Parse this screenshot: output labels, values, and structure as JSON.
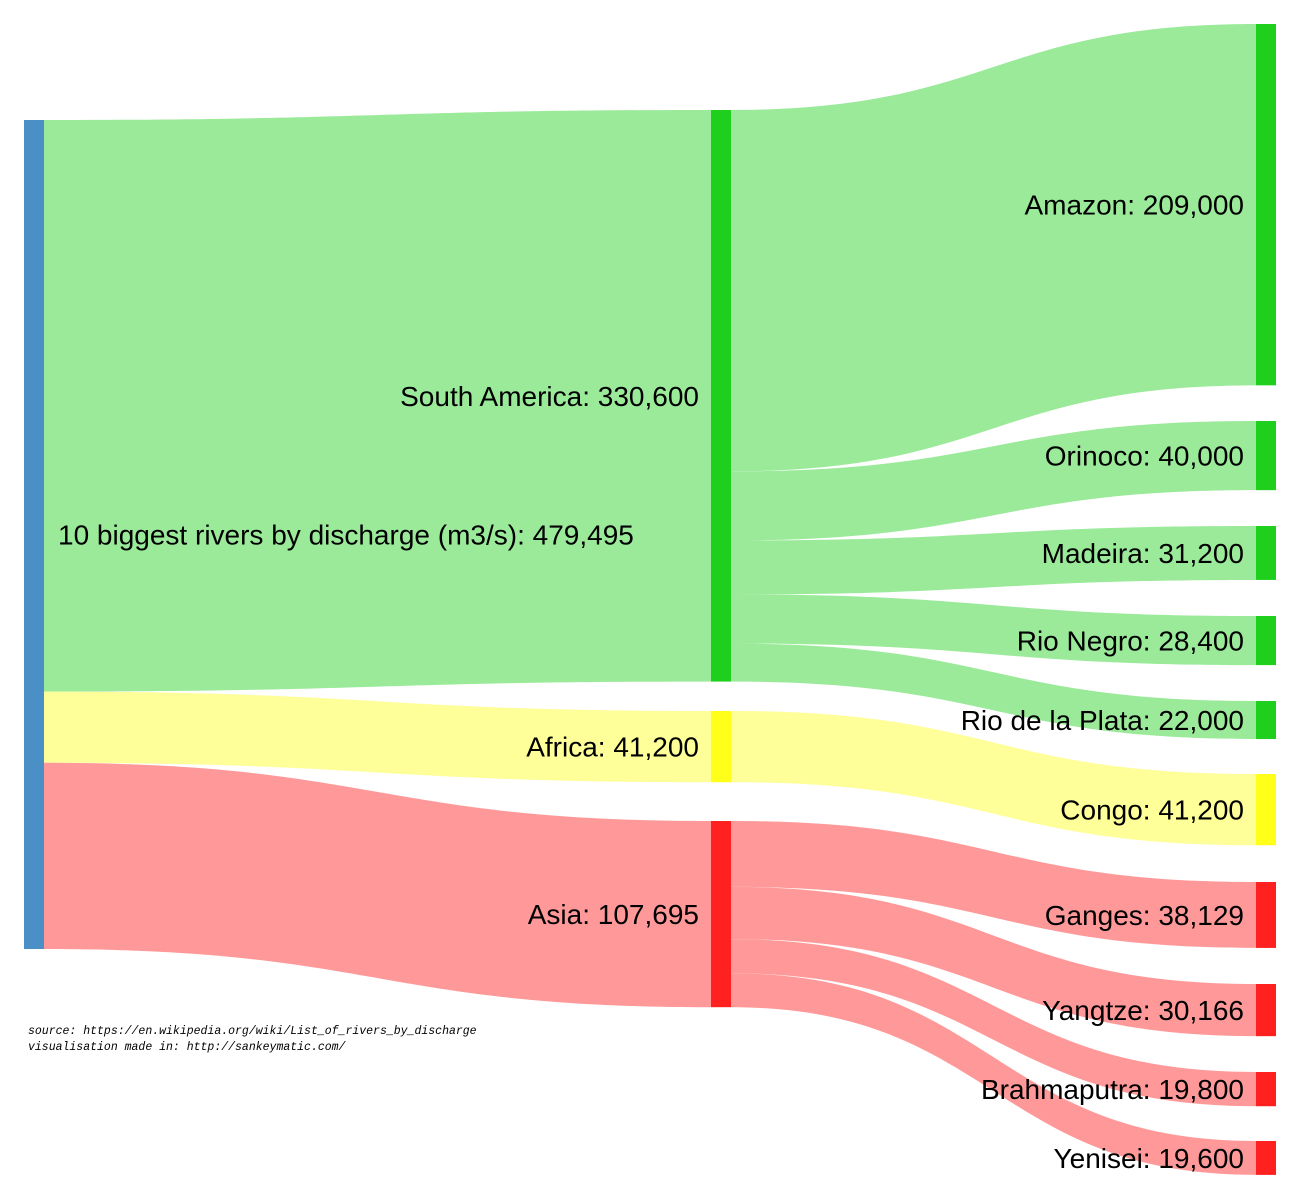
{
  "chart_data": {
    "type": "sankey",
    "units": "m3/s",
    "nodes": [
      {
        "id": "total",
        "label": "10 biggest rivers by discharge (m3/s): 479,495",
        "value": 479495,
        "color": "#4a90c7"
      },
      {
        "id": "south_america",
        "label": "South America: 330,600",
        "value": 330600,
        "color": "#1ecf1e"
      },
      {
        "id": "africa",
        "label": "Africa: 41,200",
        "value": 41200,
        "color": "#ffff19"
      },
      {
        "id": "asia",
        "label": "Asia: 107,695",
        "value": 107695,
        "color": "#ff2020"
      },
      {
        "id": "amazon",
        "label": "Amazon: 209,000",
        "value": 209000,
        "color": "#1ecf1e"
      },
      {
        "id": "orinoco",
        "label": "Orinoco: 40,000",
        "value": 40000,
        "color": "#1ecf1e"
      },
      {
        "id": "madeira",
        "label": "Madeira: 31,200",
        "value": 31200,
        "color": "#1ecf1e"
      },
      {
        "id": "rio_negro",
        "label": "Rio Negro: 28,400",
        "value": 28400,
        "color": "#1ecf1e"
      },
      {
        "id": "rio_de_la_plata",
        "label": "Rio de la Plata: 22,000",
        "value": 22000,
        "color": "#1ecf1e"
      },
      {
        "id": "congo",
        "label": "Congo: 41,200",
        "value": 41200,
        "color": "#ffff19"
      },
      {
        "id": "ganges",
        "label": "Ganges: 38,129",
        "value": 38129,
        "color": "#ff2020"
      },
      {
        "id": "yangtze",
        "label": "Yangtze: 30,166",
        "value": 30166,
        "color": "#ff2020"
      },
      {
        "id": "brahmaputra",
        "label": "Brahmaputra: 19,800",
        "value": 19800,
        "color": "#ff2020"
      },
      {
        "id": "yenisei",
        "label": "Yenisei: 19,600",
        "value": 19600,
        "color": "#ff2020"
      }
    ],
    "links": [
      {
        "source": "total",
        "target": "south_america",
        "value": 330600,
        "color": "#9aea9a"
      },
      {
        "source": "total",
        "target": "africa",
        "value": 41200,
        "color": "#ffff99"
      },
      {
        "source": "total",
        "target": "asia",
        "value": 107695,
        "color": "#ff9999"
      },
      {
        "source": "south_america",
        "target": "amazon",
        "value": 209000,
        "color": "#9aea9a"
      },
      {
        "source": "south_america",
        "target": "orinoco",
        "value": 40000,
        "color": "#9aea9a"
      },
      {
        "source": "south_america",
        "target": "madeira",
        "value": 31200,
        "color": "#9aea9a"
      },
      {
        "source": "south_america",
        "target": "rio_negro",
        "value": 28400,
        "color": "#9aea9a"
      },
      {
        "source": "south_america",
        "target": "rio_de_la_plata",
        "value": 22000,
        "color": "#9aea9a"
      },
      {
        "source": "africa",
        "target": "congo",
        "value": 41200,
        "color": "#ffff99"
      },
      {
        "source": "asia",
        "target": "ganges",
        "value": 38129,
        "color": "#ff9999"
      },
      {
        "source": "asia",
        "target": "yangtze",
        "value": 30166,
        "color": "#ff9999"
      },
      {
        "source": "asia",
        "target": "brahmaputra",
        "value": 19800,
        "color": "#ff9999"
      },
      {
        "source": "asia",
        "target": "yenisei",
        "value": 19600,
        "color": "#ff9999"
      }
    ]
  },
  "credits": {
    "source": "source: https://en.wikipedia.org/wiki/List_of_rivers_by_discharge",
    "made_in": "visualisation made in: http://sankeymatic.com/"
  }
}
